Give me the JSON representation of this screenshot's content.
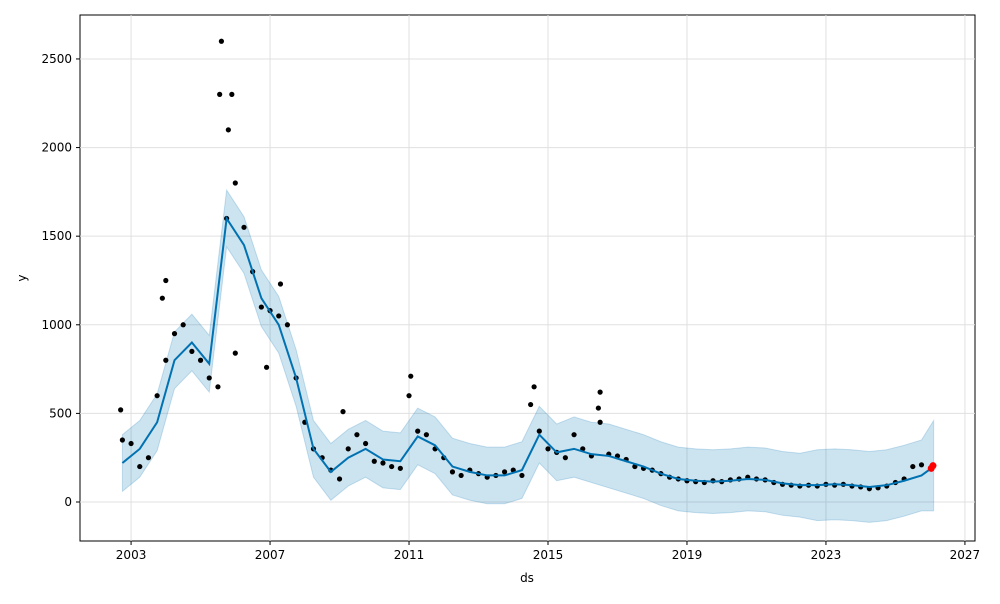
{
  "chart_data": {
    "type": "forecast",
    "x_label": "ds",
    "y_label": "y",
    "xlim": [
      2001.53,
      2027.29
    ],
    "ylim": [
      -220,
      2748
    ],
    "xticks": [
      2003,
      2007,
      2011,
      2015,
      2019,
      2023,
      2027
    ],
    "yticks": [
      0,
      500,
      1000,
      1500,
      2000,
      2500
    ],
    "grid": true,
    "points": {
      "color": "#000000",
      "x": [
        2002.75,
        2003.0,
        2003.25,
        2003.5,
        2003.75,
        2004.0,
        2004.25,
        2004.5,
        2004.75,
        2005.0,
        2005.25,
        2005.5,
        2005.75,
        2006.0,
        2006.25,
        2006.5,
        2006.75,
        2007.0,
        2007.25,
        2007.5,
        2007.75,
        2008.0,
        2008.25,
        2008.5,
        2008.75,
        2009.0,
        2009.25,
        2009.5,
        2009.75,
        2010.0,
        2010.25,
        2010.5,
        2010.75,
        2011.0,
        2011.25,
        2011.5,
        2011.75,
        2012.0,
        2012.25,
        2012.5,
        2012.75,
        2013.0,
        2013.25,
        2013.5,
        2013.75,
        2014.0,
        2014.25,
        2014.5,
        2014.75,
        2015.0,
        2015.25,
        2015.5,
        2015.75,
        2016.0,
        2016.25,
        2016.5,
        2016.75,
        2017.0,
        2017.25,
        2017.5,
        2017.75,
        2018.0,
        2018.25,
        2018.5,
        2018.75,
        2019.0,
        2019.25,
        2019.5,
        2019.75,
        2020.0,
        2020.25,
        2020.5,
        2020.75,
        2021.0,
        2021.25,
        2021.5,
        2021.75,
        2022.0,
        2022.25,
        2022.5,
        2022.75,
        2023.0,
        2023.25,
        2023.5,
        2023.75,
        2024.0,
        2024.25,
        2024.5,
        2024.75,
        2025.0,
        2025.25,
        2025.5,
        2025.75,
        2005.6,
        2005.55,
        2005.9,
        2005.8,
        2004.0,
        2003.9,
        2006.0,
        2006.9,
        2007.3,
        2011.05,
        2014.6,
        2016.5,
        2009.1,
        2002.7,
        2016.45
      ],
      "values": [
        350,
        330,
        200,
        250,
        600,
        800,
        950,
        1000,
        850,
        800,
        700,
        650,
        1600,
        1800,
        1550,
        1300,
        1100,
        1080,
        1050,
        1000,
        700,
        450,
        300,
        250,
        180,
        130,
        300,
        380,
        330,
        230,
        220,
        200,
        190,
        600,
        400,
        380,
        300,
        250,
        170,
        150,
        180,
        160,
        140,
        150,
        170,
        180,
        150,
        550,
        400,
        300,
        280,
        250,
        380,
        300,
        260,
        450,
        270,
        260,
        240,
        200,
        190,
        180,
        160,
        140,
        130,
        120,
        115,
        110,
        120,
        115,
        125,
        130,
        140,
        130,
        125,
        110,
        100,
        95,
        90,
        95,
        90,
        100,
        95,
        100,
        90,
        85,
        75,
        80,
        90,
        110,
        130,
        200,
        210,
        2600,
        2300,
        2300,
        2100,
        1250,
        1150,
        840,
        760,
        1230,
        710,
        650,
        620,
        510,
        520,
        530
      ]
    },
    "forecast": {
      "color": "#0072B2",
      "x": [
        2002.75,
        2003.25,
        2003.75,
        2004.25,
        2004.75,
        2005.25,
        2005.75,
        2006.25,
        2006.75,
        2007.25,
        2007.75,
        2008.25,
        2008.75,
        2009.25,
        2009.75,
        2010.25,
        2010.75,
        2011.25,
        2011.75,
        2012.25,
        2012.75,
        2013.25,
        2013.75,
        2014.25,
        2014.75,
        2015.25,
        2015.75,
        2016.25,
        2016.75,
        2017.25,
        2017.75,
        2018.25,
        2018.75,
        2019.25,
        2019.75,
        2020.25,
        2020.75,
        2021.25,
        2021.75,
        2022.25,
        2022.75,
        2023.25,
        2023.75,
        2024.25,
        2024.75,
        2025.25,
        2025.75,
        2026.1
      ],
      "values": [
        220,
        300,
        450,
        800,
        900,
        780,
        1600,
        1450,
        1150,
        1000,
        700,
        300,
        170,
        250,
        300,
        240,
        230,
        370,
        320,
        200,
        170,
        150,
        150,
        180,
        380,
        280,
        300,
        270,
        260,
        230,
        200,
        160,
        130,
        120,
        115,
        120,
        130,
        125,
        105,
        95,
        95,
        100,
        95,
        85,
        95,
        120,
        150,
        200
      ],
      "lower": [
        60,
        140,
        290,
        640,
        740,
        620,
        1440,
        1290,
        990,
        840,
        540,
        140,
        10,
        90,
        140,
        80,
        70,
        210,
        160,
        40,
        10,
        -10,
        -10,
        20,
        220,
        120,
        140,
        110,
        80,
        50,
        20,
        -20,
        -50,
        -60,
        -65,
        -60,
        -50,
        -55,
        -75,
        -85,
        -105,
        -100,
        -105,
        -115,
        -105,
        -80,
        -50,
        -50
      ],
      "upper": [
        380,
        460,
        610,
        960,
        1060,
        940,
        1760,
        1610,
        1310,
        1160,
        860,
        460,
        330,
        410,
        460,
        400,
        390,
        530,
        480,
        360,
        330,
        310,
        310,
        340,
        540,
        440,
        480,
        450,
        440,
        410,
        380,
        340,
        310,
        300,
        295,
        300,
        310,
        305,
        285,
        275,
        295,
        300,
        295,
        285,
        295,
        320,
        350,
        460
      ]
    },
    "highlight": {
      "color": "#ff0000",
      "x": [
        2026.03,
        2026.08
      ],
      "values": [
        190,
        205
      ]
    }
  }
}
